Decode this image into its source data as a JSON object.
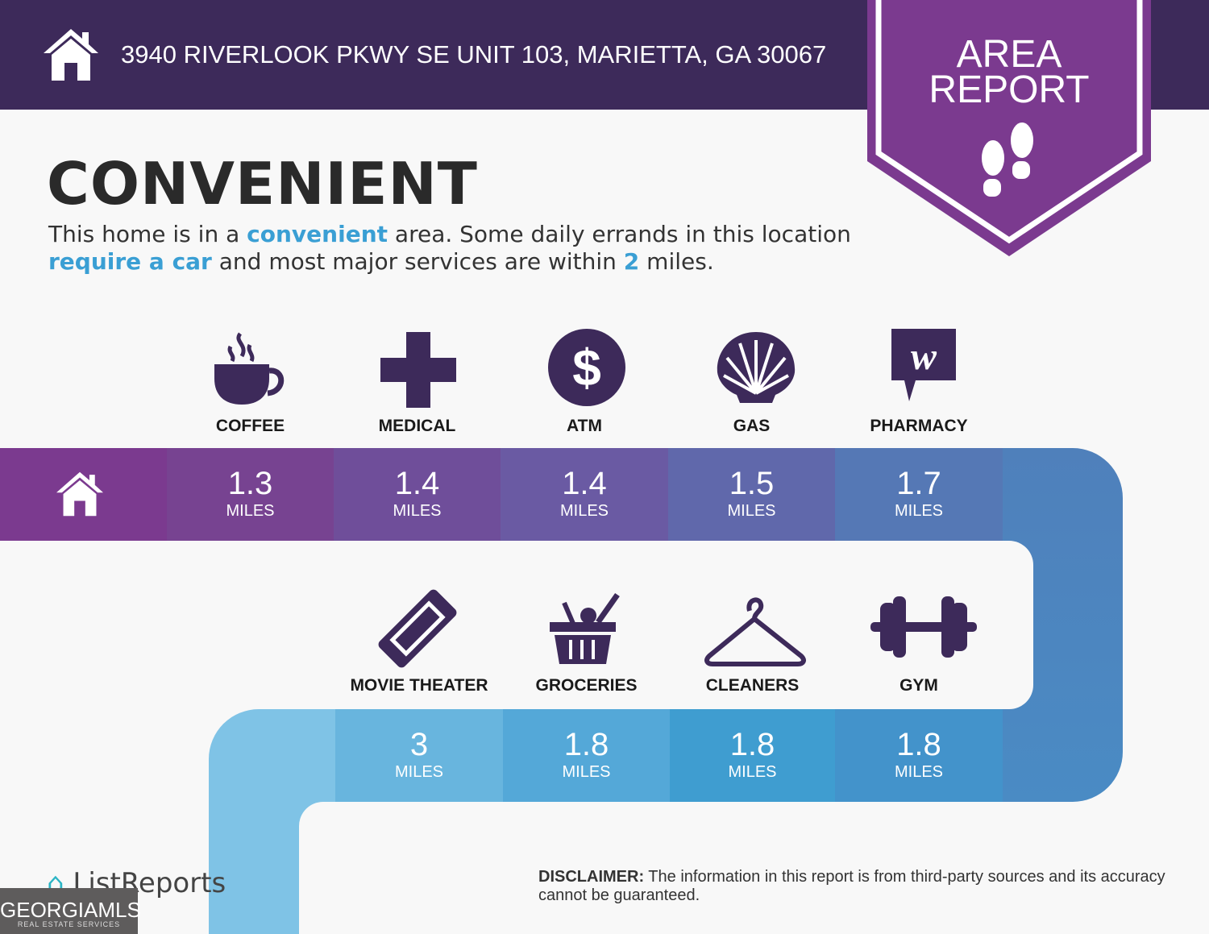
{
  "header": {
    "address": "3940 RIVERLOOK PKWY SE UNIT 103, MARIETTA, GA 30067",
    "badge_line1": "AREA",
    "badge_line2": "REPORT"
  },
  "title": "CONVENIENT",
  "description": {
    "p1": "This home is in a ",
    "h1": "convenient",
    "p2": " area. Some daily errands in this location ",
    "h2": "require a car",
    "p3": " and most major services are within ",
    "h3": "2",
    "p4": " miles."
  },
  "amenities": [
    {
      "label": "COFFEE",
      "distance": "1.3",
      "unit": "MILES",
      "icon": "coffee-cup-icon"
    },
    {
      "label": "MEDICAL",
      "distance": "1.4",
      "unit": "MILES",
      "icon": "medical-cross-icon"
    },
    {
      "label": "ATM",
      "distance": "1.4",
      "unit": "MILES",
      "icon": "dollar-icon"
    },
    {
      "label": "GAS",
      "distance": "1.5",
      "unit": "MILES",
      "icon": "shell-icon"
    },
    {
      "label": "PHARMACY",
      "distance": "1.7",
      "unit": "MILES",
      "icon": "walgreens-icon"
    },
    {
      "label": "MOVIE THEATER",
      "distance": "3",
      "unit": "MILES",
      "icon": "ticket-icon"
    },
    {
      "label": "GROCERIES",
      "distance": "1.8",
      "unit": "MILES",
      "icon": "basket-icon"
    },
    {
      "label": "CLEANERS",
      "distance": "1.8",
      "unit": "MILES",
      "icon": "hanger-icon"
    },
    {
      "label": "GYM",
      "distance": "1.8",
      "unit": "MILES",
      "icon": "dumbbell-icon"
    }
  ],
  "footer": {
    "brand": "ListReports",
    "mls": "GEORGIAMLS",
    "mls_sub": "REAL ESTATE SERVICES",
    "disclaimer_label": "DISCLAIMER:",
    "disclaimer": " The information in this report is from third-party sources and its accuracy cannot be guaranteed."
  },
  "colors": {
    "header": "#3d2a5a",
    "badge": "#7b3a8f",
    "icon": "#3d2a5a",
    "highlight": "#3a9fd4"
  }
}
